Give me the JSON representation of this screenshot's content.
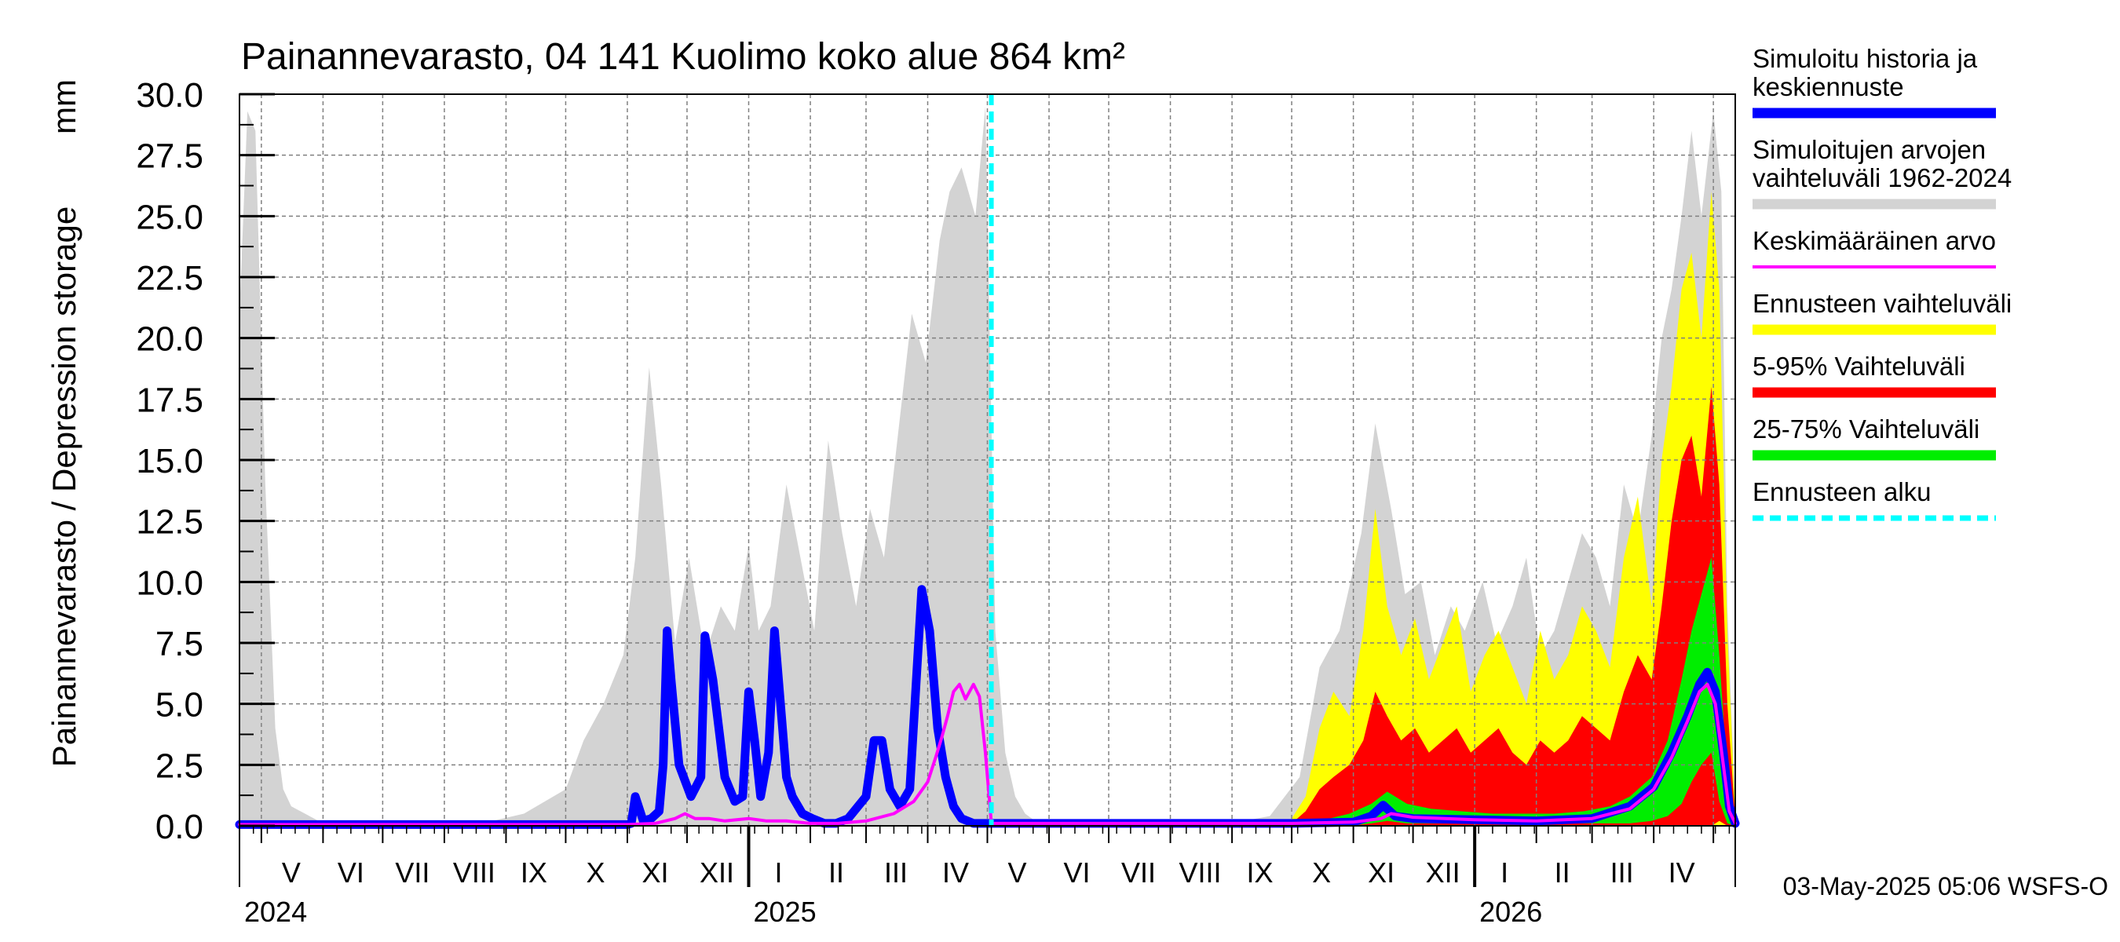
{
  "chart_data": {
    "type": "area",
    "title": "Painannevarasto, 04 141 Kuolimo koko alue 864 km²",
    "unit": "mm",
    "ylabel": "Painannevarasto / Depression storage",
    "ylim": [
      0,
      30
    ],
    "yticks": [
      "0.0",
      "2.5",
      "5.0",
      "7.5",
      "10.0",
      "12.5",
      "15.0",
      "17.5",
      "20.0",
      "22.5",
      "25.0",
      "27.5",
      "30.0"
    ],
    "x_start": "2024-04-20",
    "x_end": "2026-05-12",
    "forecast_start": "2025-05-03",
    "month_ticks": [
      "2024-05-01",
      "2024-06-01",
      "2024-07-01",
      "2024-08-01",
      "2024-09-01",
      "2024-10-01",
      "2024-11-01",
      "2024-12-01",
      "2025-01-01",
      "2025-02-01",
      "2025-03-01",
      "2025-04-01",
      "2025-05-01",
      "2025-06-01",
      "2025-07-01",
      "2025-08-01",
      "2025-09-01",
      "2025-10-01",
      "2025-11-01",
      "2025-12-01",
      "2026-01-01",
      "2026-02-01",
      "2026-03-01",
      "2026-04-01",
      "2026-05-01"
    ],
    "month_labels": [
      {
        "label": "V",
        "mid": "2024-05-16"
      },
      {
        "label": "VI",
        "mid": "2024-06-15"
      },
      {
        "label": "VII",
        "mid": "2024-07-16"
      },
      {
        "label": "VIII",
        "mid": "2024-08-16"
      },
      {
        "label": "IX",
        "mid": "2024-09-15"
      },
      {
        "label": "X",
        "mid": "2024-10-16"
      },
      {
        "label": "XI",
        "mid": "2024-11-15"
      },
      {
        "label": "XII",
        "mid": "2024-12-16"
      },
      {
        "label": "I",
        "mid": "2025-01-16"
      },
      {
        "label": "II",
        "mid": "2025-02-14"
      },
      {
        "label": "III",
        "mid": "2025-03-16"
      },
      {
        "label": "IV",
        "mid": "2025-04-15"
      },
      {
        "label": "V",
        "mid": "2025-05-16"
      },
      {
        "label": "VI",
        "mid": "2025-06-15"
      },
      {
        "label": "VII",
        "mid": "2025-07-16"
      },
      {
        "label": "VIII",
        "mid": "2025-08-16"
      },
      {
        "label": "IX",
        "mid": "2025-09-15"
      },
      {
        "label": "X",
        "mid": "2025-10-16"
      },
      {
        "label": "XI",
        "mid": "2025-11-15"
      },
      {
        "label": "XII",
        "mid": "2025-12-16"
      },
      {
        "label": "I",
        "mid": "2026-01-16"
      },
      {
        "label": "II",
        "mid": "2026-02-14"
      },
      {
        "label": "III",
        "mid": "2026-03-16"
      },
      {
        "label": "IV",
        "mid": "2026-04-15"
      }
    ],
    "year_labels": [
      {
        "label": "2024",
        "date": "2024-04-20"
      },
      {
        "label": "2025",
        "date": "2025-01-01"
      },
      {
        "label": "2026",
        "date": "2026-01-01"
      }
    ],
    "series": [
      {
        "name": "Simuloitujen arvojen vaihteluväli 1962-2024",
        "kind": "band",
        "color": "#d3d3d3",
        "x": [
          "2024-04-20",
          "2024-04-24",
          "2024-04-28",
          "2024-05-03",
          "2024-05-08",
          "2024-05-12",
          "2024-05-16",
          "2024-06-01",
          "2024-08-20",
          "2024-09-10",
          "2024-10-01",
          "2024-10-10",
          "2024-10-20",
          "2024-10-30",
          "2024-11-05",
          "2024-11-12",
          "2024-11-18",
          "2024-11-25",
          "2024-12-02",
          "2024-12-10",
          "2024-12-18",
          "2024-12-25",
          "2025-01-01",
          "2025-01-06",
          "2025-01-12",
          "2025-01-20",
          "2025-01-27",
          "2025-02-03",
          "2025-02-10",
          "2025-02-17",
          "2025-02-24",
          "2025-03-03",
          "2025-03-10",
          "2025-03-17",
          "2025-03-24",
          "2025-03-31",
          "2025-04-07",
          "2025-04-12",
          "2025-04-18",
          "2025-04-25",
          "2025-04-30",
          "2025-05-05",
          "2025-05-10",
          "2025-05-15",
          "2025-05-20",
          "2025-05-25",
          "2025-06-05",
          "2025-06-30",
          "2025-08-31",
          "2025-09-20",
          "2025-10-05",
          "2025-10-15",
          "2025-10-25",
          "2025-11-05",
          "2025-11-12",
          "2025-11-20",
          "2025-11-27",
          "2025-12-05",
          "2025-12-12",
          "2025-12-20",
          "2025-12-27",
          "2026-01-05",
          "2026-01-12",
          "2026-01-20",
          "2026-01-27",
          "2026-02-03",
          "2026-02-10",
          "2026-02-17",
          "2026-02-24",
          "2026-03-03",
          "2026-03-10",
          "2026-03-17",
          "2026-03-24",
          "2026-03-31",
          "2026-04-05",
          "2026-04-10",
          "2026-04-15",
          "2026-04-20",
          "2026-04-25",
          "2026-05-01",
          "2026-05-05",
          "2026-05-08",
          "2026-05-12"
        ],
        "upper": [
          21.0,
          29.3,
          28.5,
          14.0,
          4.0,
          1.5,
          0.8,
          0.1,
          0.1,
          0.5,
          1.5,
          3.5,
          5.0,
          7.0,
          11.0,
          18.8,
          14.0,
          7.5,
          11.0,
          7.0,
          9.0,
          8.0,
          11.5,
          8.0,
          9.0,
          14.0,
          11.0,
          8.0,
          15.8,
          12.0,
          9.0,
          13.0,
          11.0,
          16.0,
          21.0,
          19.0,
          24.0,
          26.0,
          27.0,
          25.0,
          29.5,
          8.0,
          3.0,
          1.2,
          0.5,
          0.2,
          0.1,
          0.1,
          0.1,
          0.4,
          2.0,
          6.5,
          8.0,
          12.0,
          16.5,
          13.0,
          9.5,
          10.0,
          7.0,
          9.0,
          8.0,
          10.0,
          7.5,
          9.0,
          11.0,
          7.0,
          8.0,
          10.0,
          12.0,
          11.0,
          9.0,
          14.0,
          12.0,
          16.0,
          20.0,
          22.0,
          25.0,
          28.5,
          25.0,
          29.3,
          26.0,
          9.0,
          0.5
        ],
        "lower": [
          0,
          0,
          0,
          0,
          0,
          0,
          0,
          0,
          0,
          0,
          0,
          0,
          0,
          0,
          0,
          0,
          0,
          0,
          0,
          0,
          0,
          0,
          0,
          0,
          0,
          0,
          0,
          0,
          0,
          0,
          0,
          0,
          0,
          0,
          0,
          0,
          0,
          0,
          0,
          0,
          0,
          0,
          0,
          0,
          0,
          0,
          0,
          0,
          0,
          0,
          0,
          0,
          0,
          0,
          0,
          0,
          0,
          0,
          0,
          0,
          0,
          0,
          0,
          0,
          0,
          0,
          0,
          0,
          0,
          0,
          0,
          0,
          0,
          0,
          0,
          0,
          0,
          0,
          0,
          0,
          0,
          0,
          0
        ]
      },
      {
        "name": "Ennusteen vaihteluväli",
        "kind": "band",
        "color": "#ffff00",
        "x": [
          "2025-10-01",
          "2025-10-08",
          "2025-10-15",
          "2025-10-22",
          "2025-10-30",
          "2025-11-06",
          "2025-11-12",
          "2025-11-18",
          "2025-11-25",
          "2025-12-02",
          "2025-12-09",
          "2025-12-16",
          "2025-12-23",
          "2025-12-30",
          "2026-01-06",
          "2026-01-13",
          "2026-01-20",
          "2026-01-27",
          "2026-02-03",
          "2026-02-10",
          "2026-02-17",
          "2026-02-24",
          "2026-03-03",
          "2026-03-10",
          "2026-03-17",
          "2026-03-24",
          "2026-03-31",
          "2026-04-05",
          "2026-04-10",
          "2026-04-15",
          "2026-04-20",
          "2026-04-25",
          "2026-04-30",
          "2026-05-04",
          "2026-05-08",
          "2026-05-12"
        ],
        "upper": [
          0.3,
          1.2,
          4.0,
          5.5,
          4.5,
          8.0,
          13.0,
          9.0,
          7.0,
          8.5,
          6.0,
          7.5,
          9.0,
          5.5,
          7.0,
          8.0,
          6.5,
          5.0,
          8.0,
          6.0,
          7.0,
          9.0,
          8.0,
          6.5,
          11.0,
          13.5,
          9.0,
          15.0,
          18.0,
          22.0,
          23.5,
          20.0,
          26.0,
          22.0,
          8.0,
          0.5
        ],
        "lower": [
          0,
          0,
          0,
          0,
          0,
          0,
          0,
          0,
          0,
          0,
          0,
          0,
          0,
          0,
          0,
          0,
          0,
          0,
          0,
          0,
          0,
          0,
          0,
          0,
          0,
          0,
          0,
          0,
          0,
          0,
          0,
          0,
          0,
          0,
          0,
          0
        ]
      },
      {
        "name": "5-95% Vaihteluväli",
        "kind": "band",
        "color": "#ff0000",
        "x": [
          "2025-10-01",
          "2025-10-08",
          "2025-10-15",
          "2025-10-22",
          "2025-10-30",
          "2025-11-06",
          "2025-11-12",
          "2025-11-18",
          "2025-11-25",
          "2025-12-02",
          "2025-12-09",
          "2025-12-16",
          "2025-12-23",
          "2025-12-30",
          "2026-01-06",
          "2026-01-13",
          "2026-01-20",
          "2026-01-27",
          "2026-02-03",
          "2026-02-10",
          "2026-02-17",
          "2026-02-24",
          "2026-03-03",
          "2026-03-10",
          "2026-03-17",
          "2026-03-24",
          "2026-03-31",
          "2026-04-05",
          "2026-04-10",
          "2026-04-15",
          "2026-04-20",
          "2026-04-25",
          "2026-04-30",
          "2026-05-04",
          "2026-05-08",
          "2026-05-12"
        ],
        "upper": [
          0.1,
          0.6,
          1.5,
          2.0,
          2.5,
          3.5,
          5.5,
          4.5,
          3.5,
          4.0,
          3.0,
          3.5,
          4.0,
          3.0,
          3.5,
          4.0,
          3.0,
          2.5,
          3.5,
          3.0,
          3.5,
          4.5,
          4.0,
          3.5,
          5.5,
          7.0,
          6.0,
          9.0,
          12.5,
          15.0,
          16.0,
          13.5,
          18.0,
          14.0,
          5.0,
          0.3
        ],
        "lower": [
          0,
          0,
          0,
          0,
          0,
          0,
          0,
          0,
          0,
          0,
          0,
          0,
          0,
          0,
          0,
          0,
          0,
          0,
          0,
          0,
          0,
          0,
          0,
          0,
          0,
          0,
          0,
          0,
          0,
          0,
          0,
          0,
          0,
          0.2,
          0,
          0
        ]
      },
      {
        "name": "25-75% Vaihteluväli",
        "kind": "band",
        "color": "#00ee00",
        "x": [
          "2025-10-15",
          "2025-10-30",
          "2025-11-10",
          "2025-11-18",
          "2025-11-28",
          "2025-12-10",
          "2025-12-25",
          "2026-01-10",
          "2026-01-25",
          "2026-02-10",
          "2026-02-25",
          "2026-03-10",
          "2026-03-20",
          "2026-03-31",
          "2026-04-08",
          "2026-04-15",
          "2026-04-20",
          "2026-04-25",
          "2026-04-30",
          "2026-05-04",
          "2026-05-08",
          "2026-05-12"
        ],
        "upper": [
          0.2,
          0.5,
          0.9,
          1.4,
          0.9,
          0.7,
          0.6,
          0.5,
          0.5,
          0.5,
          0.6,
          0.8,
          1.2,
          2.0,
          3.5,
          6.0,
          8.0,
          9.5,
          11.0,
          7.0,
          2.0,
          0.2
        ],
        "lower": [
          0,
          0,
          0.1,
          0.2,
          0.1,
          0.1,
          0.1,
          0.1,
          0.1,
          0.1,
          0.1,
          0.1,
          0.1,
          0.2,
          0.4,
          0.9,
          1.8,
          2.5,
          3.0,
          1.0,
          0.1,
          0
        ]
      },
      {
        "name": "Simuloitu historia ja keskiennuste",
        "kind": "thick-line",
        "color": "#0000ff",
        "x": [
          "2024-04-20",
          "2024-11-01",
          "2024-11-03",
          "2024-11-05",
          "2024-11-09",
          "2024-11-13",
          "2024-11-17",
          "2024-11-19",
          "2024-11-21",
          "2024-11-23",
          "2024-11-27",
          "2024-12-03",
          "2024-12-08",
          "2024-12-10",
          "2024-12-14",
          "2024-12-20",
          "2024-12-25",
          "2024-12-29",
          "2025-01-01",
          "2025-01-04",
          "2025-01-07",
          "2025-01-11",
          "2025-01-14",
          "2025-01-18",
          "2025-01-20",
          "2025-01-23",
          "2025-01-28",
          "2025-02-02",
          "2025-02-08",
          "2025-02-14",
          "2025-02-20",
          "2025-03-01",
          "2025-03-05",
          "2025-03-09",
          "2025-03-13",
          "2025-03-18",
          "2025-03-23",
          "2025-03-29",
          "2025-04-02",
          "2025-04-06",
          "2025-04-10",
          "2025-04-14",
          "2025-04-18",
          "2025-04-24",
          "2025-05-03",
          "2025-10-01",
          "2025-11-01",
          "2025-11-10",
          "2025-11-16",
          "2025-11-22",
          "2025-12-01",
          "2026-01-01",
          "2026-02-01",
          "2026-03-01",
          "2026-03-20",
          "2026-04-01",
          "2026-04-10",
          "2026-04-18",
          "2026-04-24",
          "2026-04-28",
          "2026-05-02",
          "2026-05-06",
          "2026-05-09",
          "2026-05-12"
        ],
        "y": [
          0.05,
          0.05,
          0.1,
          1.2,
          0.2,
          0.3,
          0.6,
          2.5,
          8.0,
          6.0,
          2.5,
          1.2,
          2.0,
          7.8,
          6.0,
          2.0,
          1.0,
          1.2,
          5.5,
          3.5,
          1.2,
          3.0,
          8.0,
          4.0,
          2.0,
          1.2,
          0.5,
          0.3,
          0.1,
          0.1,
          0.3,
          1.2,
          3.5,
          3.5,
          1.5,
          0.8,
          1.5,
          9.7,
          8.0,
          4.0,
          2.0,
          0.8,
          0.3,
          0.1,
          0.1,
          0.1,
          0.15,
          0.4,
          0.85,
          0.4,
          0.3,
          0.25,
          0.2,
          0.3,
          0.8,
          1.6,
          3.0,
          4.5,
          5.8,
          6.3,
          5.5,
          3.0,
          0.8,
          0.1
        ]
      },
      {
        "name": "Keskimääräinen arvo",
        "kind": "line",
        "color": "#ff00ff",
        "x": [
          "2024-04-20",
          "2024-11-01",
          "2024-11-15",
          "2024-11-25",
          "2024-11-30",
          "2024-12-05",
          "2024-12-12",
          "2024-12-20",
          "2025-01-01",
          "2025-01-10",
          "2025-01-20",
          "2025-02-01",
          "2025-02-15",
          "2025-03-01",
          "2025-03-15",
          "2025-03-25",
          "2025-04-01",
          "2025-04-05",
          "2025-04-08",
          "2025-04-11",
          "2025-04-14",
          "2025-04-17",
          "2025-04-20",
          "2025-04-24",
          "2025-04-27",
          "2025-04-30",
          "2025-05-03",
          "2025-10-01",
          "2025-11-01",
          "2025-11-15",
          "2025-11-20",
          "2025-12-01",
          "2026-01-01",
          "2026-02-01",
          "2026-03-01",
          "2026-03-20",
          "2026-04-01",
          "2026-04-10",
          "2026-04-18",
          "2026-04-24",
          "2026-04-28",
          "2026-05-02",
          "2026-05-06",
          "2026-05-09",
          "2026-05-12"
        ],
        "y": [
          0.05,
          0.05,
          0.1,
          0.3,
          0.5,
          0.3,
          0.3,
          0.2,
          0.3,
          0.2,
          0.2,
          0.1,
          0.1,
          0.2,
          0.5,
          1.0,
          1.8,
          2.8,
          3.6,
          4.5,
          5.5,
          5.8,
          5.2,
          5.8,
          5.3,
          3.0,
          0.1,
          0.1,
          0.15,
          0.3,
          0.5,
          0.35,
          0.25,
          0.2,
          0.3,
          0.7,
          1.5,
          2.8,
          4.3,
          5.5,
          5.8,
          5.0,
          2.5,
          0.6,
          0.1
        ]
      }
    ],
    "legend": [
      {
        "lines": [
          "Simuloitu historia ja",
          "keskiennuste"
        ],
        "color": "#0000ff",
        "style": "solid-thick"
      },
      {
        "lines": [
          "Simuloitujen arvojen",
          "vaihteluväli 1962-2024"
        ],
        "color": "#d3d3d3",
        "style": "solid-thick"
      },
      {
        "lines": [
          "Keskimääräinen arvo"
        ],
        "color": "#ff00ff",
        "style": "solid-thin"
      },
      {
        "lines": [
          "Ennusteen vaihteluväli"
        ],
        "color": "#ffff00",
        "style": "solid-thick"
      },
      {
        "lines": [
          "5-95% Vaihteluväli"
        ],
        "color": "#ff0000",
        "style": "solid-thick"
      },
      {
        "lines": [
          "25-75% Vaihteluväli"
        ],
        "color": "#00ee00",
        "style": "solid-thick"
      },
      {
        "lines": [
          "Ennusteen alku"
        ],
        "color": "#00ffff",
        "style": "dashed"
      }
    ],
    "legend_position": "right",
    "grid": true,
    "footer": "03-May-2025 05:06 WSFS-O"
  }
}
